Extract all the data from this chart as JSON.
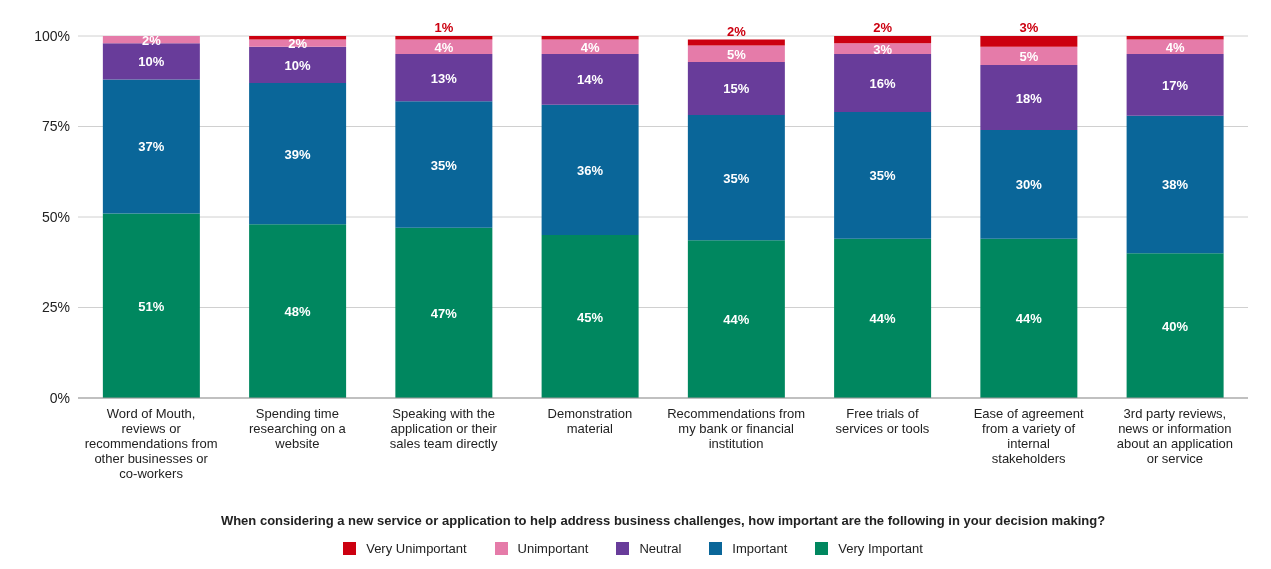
{
  "chart_data": {
    "type": "bar",
    "stacked": true,
    "xlabel": "When considering a new service or application to help address business challenges, how important are the following in your decision making?",
    "categories": [
      "Word of Mouth, reviews or recommendations from other businesses or co-workers",
      "Spending time researching on a website",
      "Speaking with the application or their sales team directly",
      "Demonstration material",
      "Recommendations from my bank or financial institution",
      "Free trials of services or tools",
      "Ease of agreement from a variety of internal stakeholders",
      "3rd party reviews, news or information about an application or service"
    ],
    "series": [
      {
        "name": "Very Important",
        "color": "#00875f",
        "values": [
          51,
          48,
          47,
          45,
          43.6,
          44,
          44,
          40
        ],
        "value_labels": [
          "51%",
          "48%",
          "47%",
          "45%",
          "44%",
          "44%",
          "44%",
          "40%"
        ]
      },
      {
        "name": "Important",
        "color": "#0a6699",
        "values": [
          37,
          39,
          35,
          36,
          34.6,
          35,
          30,
          38
        ],
        "value_labels": [
          "37%",
          "39%",
          "35%",
          "36%",
          "35%",
          "35%",
          "30%",
          "38%"
        ]
      },
      {
        "name": "Neutral",
        "color": "#683c9a",
        "values": [
          10,
          10,
          13,
          14,
          14.6,
          16,
          18,
          17
        ],
        "value_labels": [
          "10%",
          "10%",
          "13%",
          "14%",
          "15%",
          "16%",
          "18%",
          "17%"
        ]
      },
      {
        "name": "Unimportant",
        "color": "#e57ba9",
        "values": [
          2,
          2,
          4,
          4,
          4.6,
          3,
          5,
          4
        ],
        "value_labels": [
          "2%",
          "2%",
          "4%",
          "4%",
          "5%",
          "3%",
          "5%",
          "4%"
        ]
      },
      {
        "name": "Very Unimportant",
        "color": "#cc0010",
        "values": [
          null,
          1,
          1,
          1,
          1.6,
          2,
          3,
          1
        ],
        "value_labels": [
          null,
          null,
          "1%",
          null,
          "2%",
          "2%",
          "3%",
          null
        ]
      }
    ],
    "ylim": [
      0,
      100
    ],
    "yticks": [
      {
        "value": 0,
        "label": "0%"
      },
      {
        "value": 25,
        "label": "25%"
      },
      {
        "value": 50,
        "label": "50%"
      },
      {
        "value": 75,
        "label": "75%"
      },
      {
        "value": 100,
        "label": "100%"
      }
    ],
    "grid": "y",
    "legend": "bottom"
  }
}
